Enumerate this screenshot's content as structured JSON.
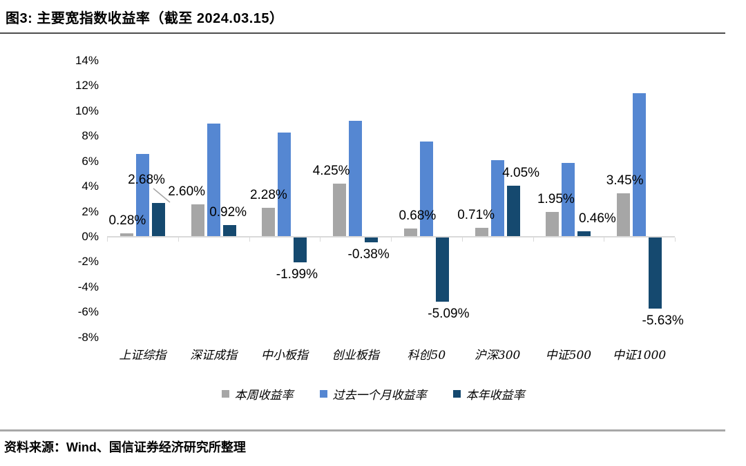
{
  "header": {
    "title": "图3: 主要宽指数收益率（截至 2024.03.15）"
  },
  "footer": {
    "source": "资料来源：Wind、国信证券经济研究所整理"
  },
  "chart_data": {
    "type": "bar",
    "title": "主要宽指数收益率（截至 2024.03.15）",
    "categories": [
      "上证综指",
      "深证成指",
      "中小板指",
      "创业板指",
      "科创50",
      "沪深300",
      "中证500",
      "中证1000"
    ],
    "series": [
      {
        "name": "本周收益率",
        "color": "#a6a6a6",
        "values": [
          0.28,
          2.6,
          2.28,
          4.25,
          0.68,
          0.71,
          1.95,
          3.45
        ],
        "labels": [
          "0.28%",
          "2.60%",
          "2.28%",
          "4.25%",
          "0.68%",
          "0.71%",
          "1.95%",
          "3.45%"
        ]
      },
      {
        "name": "过去一个月收益率",
        "color": "#5587d2",
        "values": [
          6.6,
          9.0,
          8.3,
          9.2,
          7.6,
          6.1,
          5.9,
          11.4
        ],
        "labels": []
      },
      {
        "name": "本年收益率",
        "color": "#15496f",
        "values": [
          2.68,
          0.92,
          -1.99,
          -0.38,
          -5.09,
          4.05,
          0.46,
          -5.63
        ],
        "labels": [
          "2.68%",
          "0.92%",
          "-1.99%",
          "-0.38%",
          "-5.09%",
          "4.05%",
          "0.46%",
          "-5.63%"
        ]
      }
    ],
    "ylim": [
      -8,
      14
    ],
    "ytick_step": 2,
    "ytick_labels": [
      "14%",
      "12%",
      "10%",
      "8%",
      "6%",
      "4%",
      "2%",
      "0%",
      "-2%",
      "-4%",
      "-6%",
      "-8%"
    ],
    "grid": "off",
    "legend_position": "bottom",
    "axis_color": "#d9d9d9",
    "leader_line_color": "#a6a6a6",
    "callout": {
      "series": 2,
      "index": 0
    }
  }
}
